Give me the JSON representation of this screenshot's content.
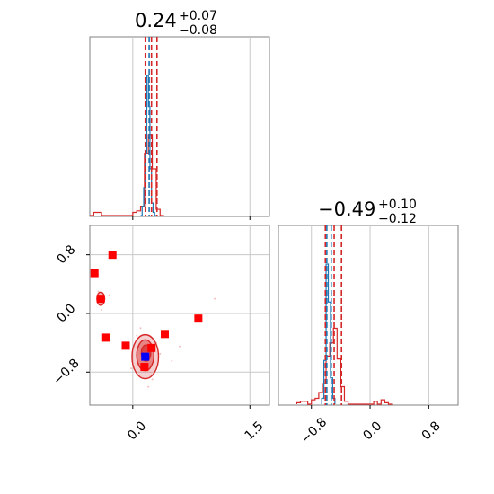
{
  "chart_data": [
    {
      "type": "histogram",
      "panel": "top-left marginal",
      "title_main": "0.24",
      "title_sup": "+0.07",
      "title_sub": "−0.08",
      "xlim": [
        -0.55,
        1.75
      ],
      "xticks": [
        0.0,
        1.5
      ],
      "grid": true,
      "quantile_lines_red": [
        0.16,
        0.24,
        0.31
      ],
      "quantile_lines_blue": [
        0.21
      ],
      "series": [
        {
          "color": "#d62728",
          "bins": [
            -0.55,
            -0.5,
            -0.45,
            -0.4,
            -0.35,
            -0.3,
            -0.25,
            -0.2,
            -0.15,
            -0.1,
            -0.05,
            0.0,
            0.05,
            0.1,
            0.15,
            0.2,
            0.25,
            0.3,
            0.35,
            0.4
          ],
          "counts": [
            0,
            2,
            2,
            0,
            0,
            0,
            0,
            0,
            0,
            0,
            0,
            2,
            3,
            6,
            40,
            52,
            30,
            4,
            0
          ]
        },
        {
          "color": "#1f77b4",
          "bins": [
            0.1,
            0.12,
            0.14,
            0.16,
            0.18,
            0.2,
            0.22,
            0.24,
            0.26,
            0.28,
            0.3
          ],
          "counts": [
            0,
            6,
            18,
            40,
            90,
            70,
            30,
            8,
            2,
            0
          ]
        }
      ]
    },
    {
      "type": "scatter",
      "panel": "bottom-left 2D",
      "xlim": [
        -0.55,
        1.75
      ],
      "ylim": [
        -1.25,
        1.2
      ],
      "xticks": [
        "0.0",
        "1.5"
      ],
      "yticks": [
        "−0.8",
        "0.0",
        "0.8"
      ],
      "yticks_values": [
        -0.8,
        0.0,
        0.8
      ],
      "xticks_values": [
        0.0,
        1.5
      ],
      "grid": true,
      "red_markers": [
        {
          "x": -0.49,
          "y": 0.55
        },
        {
          "x": -0.41,
          "y": 0.2
        },
        {
          "x": -0.26,
          "y": 0.8
        },
        {
          "x": -0.34,
          "y": -0.33
        },
        {
          "x": -0.09,
          "y": -0.44
        },
        {
          "x": 0.15,
          "y": -0.73
        },
        {
          "x": 0.24,
          "y": -0.47
        },
        {
          "x": 0.41,
          "y": -0.28
        },
        {
          "x": 0.84,
          "y": -0.07
        }
      ],
      "blue_markers": [
        {
          "x": 0.16,
          "y": -0.59
        }
      ],
      "contours": [
        {
          "cx": 0.16,
          "cy": -0.59,
          "rx": 0.17,
          "ry": 0.3
        },
        {
          "cx": 0.16,
          "cy": -0.57,
          "rx": 0.11,
          "ry": 0.21
        },
        {
          "cx": 0.17,
          "cy": -0.54,
          "rx": 0.06,
          "ry": 0.11
        },
        {
          "cx": -0.41,
          "cy": 0.2,
          "rx": 0.05,
          "ry": 0.09
        }
      ]
    },
    {
      "type": "histogram",
      "panel": "bottom-right marginal",
      "title_main": "−0.49",
      "title_sup": "+0.10",
      "title_sub": "−0.12",
      "xlim": [
        -1.25,
        1.2
      ],
      "xticks": [
        "−0.8",
        "0.0",
        "0.8"
      ],
      "xticks_values": [
        -0.8,
        0.0,
        0.8
      ],
      "grid": true,
      "quantile_lines_red": [
        -0.61,
        -0.49,
        -0.39
      ],
      "quantile_lines_blue": [
        -0.59,
        -0.53
      ],
      "series": [
        {
          "color": "#d62728",
          "bins": [
            -1.0,
            -0.95,
            -0.9,
            -0.85,
            -0.8,
            -0.75,
            -0.7,
            -0.65,
            -0.6,
            -0.55,
            -0.5,
            -0.45,
            -0.4,
            -0.35,
            -0.3,
            -0.25,
            -0.2,
            -0.15,
            -0.1,
            -0.05,
            0.0,
            0.05,
            0.1,
            0.15,
            0.2,
            0.25,
            0.3
          ],
          "counts": [
            1,
            2,
            2,
            0,
            3,
            4,
            8,
            14,
            33,
            42,
            52,
            31,
            12,
            2,
            0,
            0,
            0,
            0,
            0,
            0,
            0,
            2,
            0,
            3,
            1,
            0
          ]
        },
        {
          "color": "#1f77b4",
          "bins": [
            -0.66,
            -0.63,
            -0.6,
            -0.57,
            -0.54,
            -0.51,
            -0.48
          ],
          "counts": [
            4,
            30,
            96,
            70,
            18,
            4
          ]
        }
      ]
    }
  ]
}
